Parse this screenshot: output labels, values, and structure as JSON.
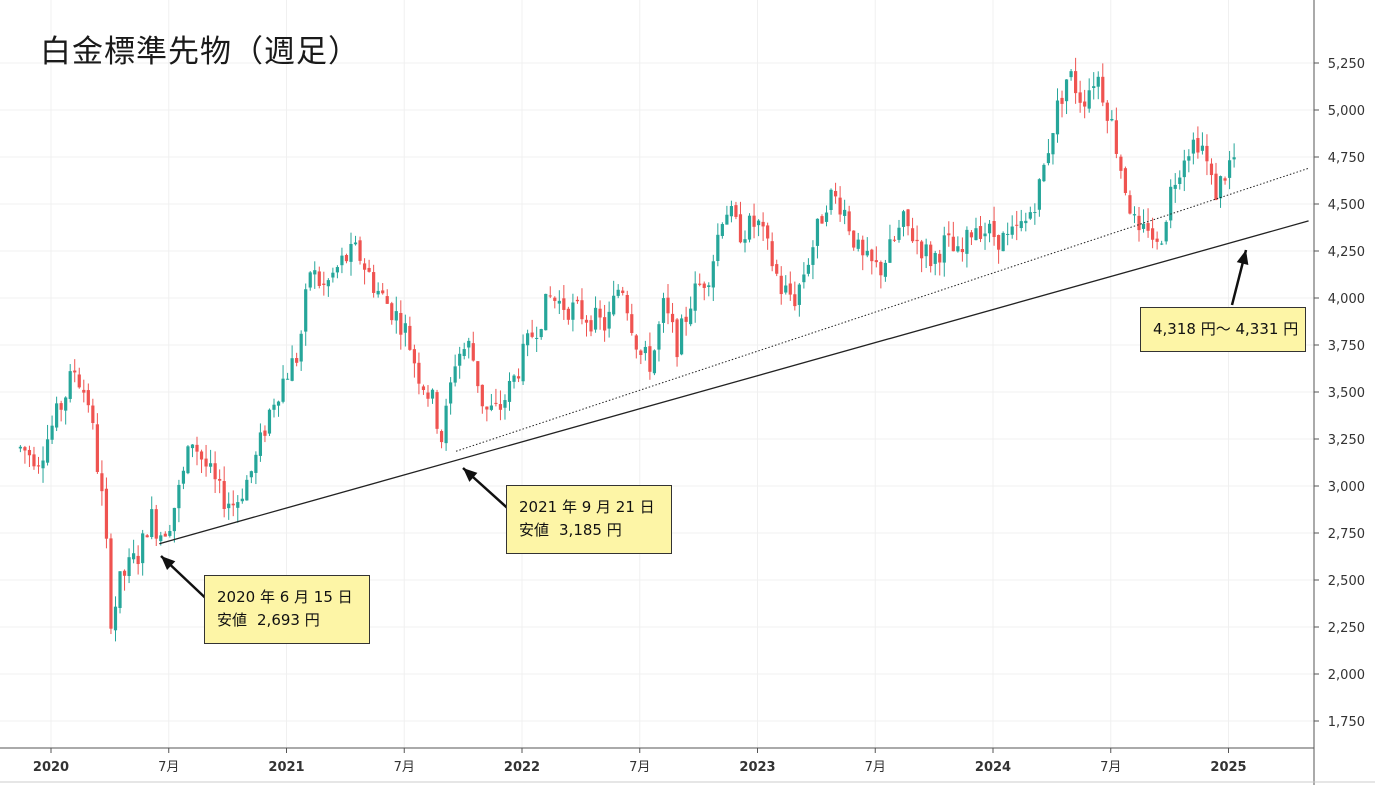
{
  "title": "白金標準先物（週足）",
  "chart_data": {
    "type": "candlestick",
    "title": "白金標準先物（週足）",
    "y_axis": {
      "ticks": [
        1750,
        2000,
        2250,
        2500,
        2750,
        3000,
        3250,
        3500,
        3750,
        4000,
        4250,
        4500,
        4750,
        5000,
        5250
      ],
      "tick_labels": [
        "1,750",
        "2,000",
        "2,250",
        "2,500",
        "2,750",
        "3,000",
        "3,250",
        "3,500",
        "3,750",
        "4,000",
        "4,250",
        "4,500",
        "4,750",
        "5,000",
        "5,250"
      ],
      "range": [
        1600,
        5450
      ],
      "position": "right"
    },
    "x_axis": {
      "range": [
        "2019-11",
        "2025-06"
      ],
      "ticks": [
        {
          "date": 2020.0,
          "label": "2020",
          "bold": true
        },
        {
          "date": 2020.5,
          "label": "7月",
          "bold": false
        },
        {
          "date": 2021.0,
          "label": "2021",
          "bold": true
        },
        {
          "date": 2021.5,
          "label": "7月",
          "bold": false
        },
        {
          "date": 2022.0,
          "label": "2022",
          "bold": true
        },
        {
          "date": 2022.5,
          "label": "7月",
          "bold": false
        },
        {
          "date": 2023.0,
          "label": "2023",
          "bold": true
        },
        {
          "date": 2023.5,
          "label": "7月",
          "bold": false
        },
        {
          "date": 2024.0,
          "label": "2024",
          "bold": true
        },
        {
          "date": 2024.5,
          "label": "7月",
          "bold": false
        },
        {
          "date": 2025.0,
          "label": "2025",
          "bold": true
        }
      ]
    },
    "colors": {
      "up": "#26a69a",
      "down": "#ef5350",
      "trend": "#222222",
      "grid": "#f0f0f0"
    },
    "price_keypoints": [
      [
        2019.87,
        3200
      ],
      [
        2019.95,
        3150
      ],
      [
        2020.05,
        3450
      ],
      [
        2020.1,
        3620
      ],
      [
        2020.16,
        3450
      ],
      [
        2020.22,
        2900
      ],
      [
        2020.24,
        2600
      ],
      [
        2020.26,
        2200
      ],
      [
        2020.28,
        2450
      ],
      [
        2020.32,
        2550
      ],
      [
        2020.38,
        2650
      ],
      [
        2020.42,
        2850
      ],
      [
        2020.46,
        2750
      ],
      [
        2020.5,
        2800
      ],
      [
        2020.55,
        3000
      ],
      [
        2020.6,
        3250
      ],
      [
        2020.66,
        3100
      ],
      [
        2020.72,
        2950
      ],
      [
        2020.78,
        2900
      ],
      [
        2020.86,
        3100
      ],
      [
        2020.94,
        3450
      ],
      [
        2021.0,
        3600
      ],
      [
        2021.05,
        3700
      ],
      [
        2021.1,
        4150
      ],
      [
        2021.16,
        4050
      ],
      [
        2021.24,
        4200
      ],
      [
        2021.3,
        4250
      ],
      [
        2021.38,
        4050
      ],
      [
        2021.44,
        3950
      ],
      [
        2021.5,
        3850
      ],
      [
        2021.56,
        3600
      ],
      [
        2021.62,
        3450
      ],
      [
        2021.66,
        3250
      ],
      [
        2021.72,
        3700
      ],
      [
        2021.78,
        3750
      ],
      [
        2021.84,
        3400
      ],
      [
        2021.9,
        3400
      ],
      [
        2021.96,
        3550
      ],
      [
        2022.04,
        3800
      ],
      [
        2022.12,
        4000
      ],
      [
        2022.2,
        3950
      ],
      [
        2022.28,
        3900
      ],
      [
        2022.36,
        3850
      ],
      [
        2022.42,
        4100
      ],
      [
        2022.5,
        3700
      ],
      [
        2022.55,
        3650
      ],
      [
        2022.6,
        3950
      ],
      [
        2022.66,
        3750
      ],
      [
        2022.72,
        4000
      ],
      [
        2022.8,
        4150
      ],
      [
        2022.86,
        4500
      ],
      [
        2022.92,
        4350
      ],
      [
        2023.0,
        4400
      ],
      [
        2023.06,
        4200
      ],
      [
        2023.1,
        4050
      ],
      [
        2023.16,
        4000
      ],
      [
        2023.24,
        4300
      ],
      [
        2023.3,
        4550
      ],
      [
        2023.36,
        4500
      ],
      [
        2023.44,
        4200
      ],
      [
        2023.52,
        4150
      ],
      [
        2023.58,
        4300
      ],
      [
        2023.62,
        4400
      ],
      [
        2023.68,
        4300
      ],
      [
        2023.74,
        4200
      ],
      [
        2023.8,
        4300
      ],
      [
        2023.86,
        4200
      ],
      [
        2023.92,
        4400
      ],
      [
        2023.98,
        4350
      ],
      [
        2024.06,
        4300
      ],
      [
        2024.14,
        4400
      ],
      [
        2024.2,
        4600
      ],
      [
        2024.26,
        4950
      ],
      [
        2024.32,
        5200
      ],
      [
        2024.38,
        5050
      ],
      [
        2024.44,
        5200
      ],
      [
        2024.5,
        4950
      ],
      [
        2024.56,
        4600
      ],
      [
        2024.62,
        4300
      ],
      [
        2024.66,
        4400
      ],
      [
        2024.7,
        4250
      ],
      [
        2024.76,
        4600
      ],
      [
        2024.82,
        4800
      ],
      [
        2024.88,
        4850
      ],
      [
        2024.94,
        4550
      ],
      [
        2025.02,
        4750
      ],
      [
        2025.03,
        4720
      ]
    ],
    "trendlines": [
      {
        "name": "support-line",
        "style": "solid",
        "start": {
          "date": 2020.46,
          "value": 2693
        },
        "end": {
          "date": 2025.34,
          "value": 4410
        }
      },
      {
        "name": "support-line-2",
        "style": "dotted",
        "start": {
          "date": 2021.72,
          "value": 3185
        },
        "end": {
          "date": 2025.34,
          "value": 4690
        }
      }
    ],
    "annotations": [
      {
        "date_label": "2020 年 6 月 15 日",
        "low_label": "安値",
        "value_label": "2,693 円"
      },
      {
        "date_label": "2021 年 9 月 21 日",
        "low_label": "安値",
        "value_label": "3,185 円"
      },
      {
        "range_label": "4,318 円〜 4,331 円"
      }
    ]
  }
}
